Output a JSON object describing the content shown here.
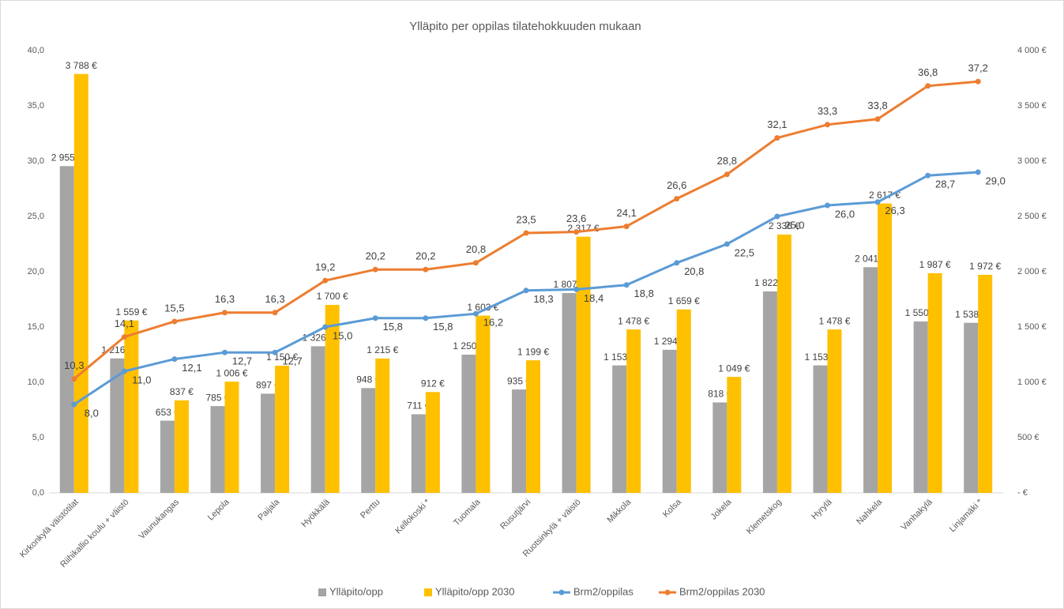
{
  "chart_data": {
    "type": "bar",
    "title": "Ylläpito per oppilas tilatehokkuuden mukaan",
    "categories": [
      "Kirkonkylä väistötilat",
      "Riihikallio koulu + väistö",
      "Vaunukangas",
      "Lepola",
      "Paijala",
      "Hyökkälä",
      "Perttu",
      "Kellokoski *",
      "Tuomala",
      "Rusutjärvi",
      "Ruotsinkylä + väistö",
      "Mikkola",
      "Kolsa",
      "Jokela",
      "Klemetskog",
      "Hyrylä",
      "Nahkela",
      "Vanhakylä",
      "Linjamäki *"
    ],
    "series": [
      {
        "name": "Ylläpito/opp",
        "type": "bar",
        "axis": "y2",
        "color": "#a5a5a5",
        "values": [
          2955,
          1216,
          653,
          785,
          897,
          1326,
          948,
          711,
          1250,
          935,
          1807,
          1153,
          1294,
          818,
          1822,
          1153,
          2041,
          1550,
          1538
        ],
        "value_labels": [
          "2 955 €",
          "1 216 €",
          "653 €",
          "785 €",
          "897 €",
          "1 326 €",
          "948 €",
          "711 €",
          "1 250 €",
          "935 €",
          "1 807 €",
          "1 153 €",
          "1 294 €",
          "818 €",
          "1 822 €",
          "1 153 €",
          "2 041 €",
          "1 550 €",
          "1 538 €"
        ]
      },
      {
        "name": "Ylläpito/opp 2030",
        "type": "bar",
        "axis": "y2",
        "color": "#ffc000",
        "values": [
          3788,
          1559,
          837,
          1006,
          1150,
          1700,
          1215,
          912,
          1603,
          1199,
          2317,
          1478,
          1659,
          1049,
          2336,
          1478,
          2617,
          1987,
          1972
        ],
        "value_labels": [
          "3 788 €",
          "1 559 €",
          "837 €",
          "1 006 €",
          "1 150 €",
          "1 700 €",
          "1 215 €",
          "912 €",
          "1 603 €",
          "1 199 €",
          "2 317 €",
          "1 478 €",
          "1 659 €",
          "1 049 €",
          "2 336 €",
          "1 478 €",
          "2 617 €",
          "1 987 €",
          "1 972 €"
        ]
      },
      {
        "name": "Brm2/oppilas",
        "type": "line",
        "color": "#5b9bd5",
        "values": [
          8.0,
          11.0,
          12.1,
          12.7,
          12.7,
          15.0,
          15.8,
          15.8,
          16.2,
          18.3,
          18.4,
          18.8,
          20.8,
          22.5,
          25.0,
          26.0,
          26.3,
          28.7,
          29.0
        ],
        "value_labels": [
          "8,0",
          "11,0",
          "12,1",
          "12,7",
          "12,7",
          "15,0",
          "15,8",
          "15,8",
          "16,2",
          "18,3",
          "18,4",
          "18,8",
          "20,8",
          "22,5",
          "25,0",
          "26,0",
          "26,3",
          "28,7",
          "29,0"
        ]
      },
      {
        "name": "Brm2/oppilas 2030",
        "type": "line",
        "color": "#ed7d31",
        "values": [
          10.3,
          14.1,
          15.5,
          16.3,
          16.3,
          19.2,
          20.2,
          20.2,
          20.8,
          23.5,
          23.6,
          24.1,
          26.6,
          28.8,
          32.1,
          33.3,
          33.8,
          36.8,
          37.2
        ],
        "value_labels": [
          "10,3",
          "14,1",
          "15,5",
          "16,3",
          "16,3",
          "19,2",
          "20,2",
          "20,2",
          "20,8",
          "23,5",
          "23,6",
          "24,1",
          "26,6",
          "28,8",
          "32,1",
          "33,3",
          "33,8",
          "36,8",
          "37,2"
        ]
      }
    ],
    "ylim": [
      0,
      40
    ],
    "yticks": [
      {
        "value": 0,
        "label": "0,0"
      },
      {
        "value": 5,
        "label": "5,0"
      },
      {
        "value": 10,
        "label": "10,0"
      },
      {
        "value": 15,
        "label": "15,0"
      },
      {
        "value": 20,
        "label": "20,0"
      },
      {
        "value": 25,
        "label": "25,0"
      },
      {
        "value": 30,
        "label": "30,0"
      },
      {
        "value": 35,
        "label": "35,0"
      },
      {
        "value": 40,
        "label": "40,0"
      }
    ],
    "y2lim": [
      0,
      4000
    ],
    "y2ticks": [
      {
        "value": 0,
        "label": "-  €"
      },
      {
        "value": 500,
        "label": "500 €"
      },
      {
        "value": 1000,
        "label": "1 000 €"
      },
      {
        "value": 1500,
        "label": "1 500 €"
      },
      {
        "value": 2000,
        "label": "2 000 €"
      },
      {
        "value": 2500,
        "label": "2 500 €"
      },
      {
        "value": 3000,
        "label": "3 000 €"
      },
      {
        "value": 3500,
        "label": "3 500 €"
      },
      {
        "value": 4000,
        "label": "4 000 €"
      }
    ],
    "legend": "bottom"
  }
}
